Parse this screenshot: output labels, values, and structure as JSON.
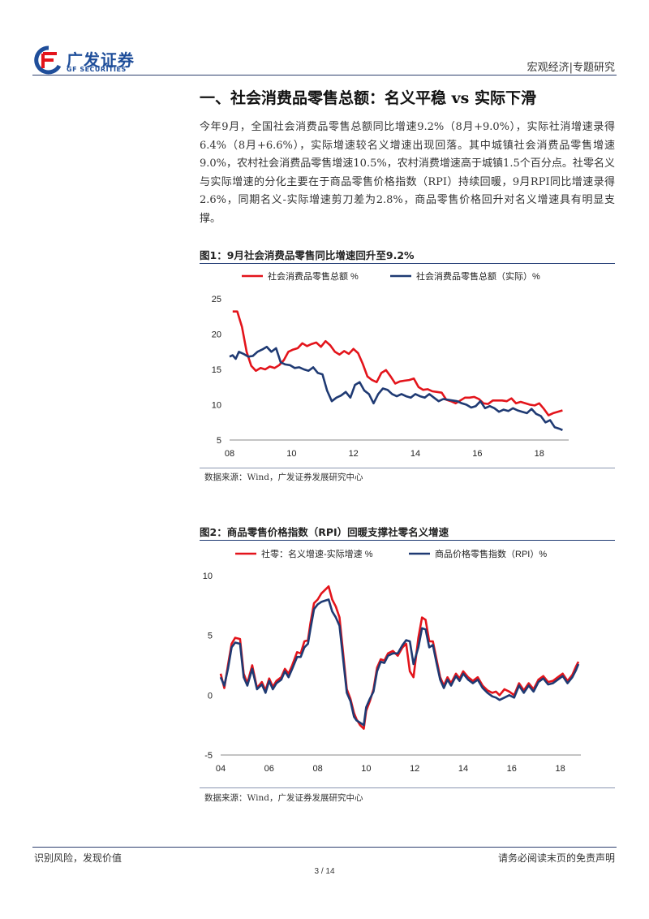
{
  "header": {
    "logo_cn": "广发证券",
    "logo_en": "GF SECURITIES",
    "right_text": "宏观经济|专题研究"
  },
  "section": {
    "title": "一、社会消费品零售总额：名义平稳 vs 实际下滑",
    "paragraph": "今年9月，全国社会消费品零售总额同比增速9.2%（8月+9.0%），实际社消增速录得6.4%（8月+6.6%），实际增速较名义增速出现回落。其中城镇社会消费品零售增速9.0%，农村社会消费品零售增速10.5%，农村消费增速高于城镇1.5个百分点。社零名义与实际增速的分化主要在于商品零售价格指数（RPI）持续回暖，9月RPI同比增速录得2.6%，同期名义-实际增速剪刀差为2.8%，商品零售价格回升对名义增速具有明显支撑。"
  },
  "figures": [
    {
      "title": "图1：9月社会消费品零售同比增速回升至9.2%",
      "source": "数据来源：Wind，广发证券发展研究中心"
    },
    {
      "title": "图2：商品零售价格指数（RPI）回暖支撑社零名义增速",
      "source": "数据来源：Wind，广发证券发展研究中心"
    }
  ],
  "colors": {
    "red": "#e3141b",
    "blue": "#1f3a73",
    "brand": "#1f4e9a"
  },
  "chart_data": [
    {
      "type": "line",
      "title": "",
      "xlabel": "",
      "ylabel": "",
      "xlim": [
        2008,
        2018.95
      ],
      "ylim": [
        5,
        25
      ],
      "yticks": [
        "5",
        "10",
        "15",
        "20",
        "25"
      ],
      "xticks": [
        "08",
        "10",
        "12",
        "14",
        "16",
        "18"
      ],
      "legend_position": "top",
      "series": [
        {
          "name": "社会消费品零售总额 %",
          "color": "#e3141b",
          "x": [
            2008.1,
            2008.25,
            2008.4,
            2008.55,
            2008.7,
            2008.85,
            2009.0,
            2009.15,
            2009.3,
            2009.45,
            2009.6,
            2009.75,
            2009.9,
            2010.05,
            2010.2,
            2010.35,
            2010.5,
            2010.65,
            2010.8,
            2010.95,
            2011.1,
            2011.25,
            2011.4,
            2011.55,
            2011.7,
            2011.85,
            2012.0,
            2012.15,
            2012.3,
            2012.45,
            2012.6,
            2012.75,
            2012.9,
            2013.05,
            2013.2,
            2013.35,
            2013.5,
            2013.65,
            2013.8,
            2013.95,
            2014.1,
            2014.25,
            2014.4,
            2014.55,
            2014.7,
            2014.85,
            2015.0,
            2015.15,
            2015.3,
            2015.45,
            2015.6,
            2015.75,
            2015.9,
            2016.05,
            2016.2,
            2016.35,
            2016.5,
            2016.65,
            2016.8,
            2016.95,
            2017.1,
            2017.25,
            2017.4,
            2017.55,
            2017.7,
            2017.85,
            2018.0,
            2018.15,
            2018.3,
            2018.45,
            2018.6,
            2018.75
          ],
          "values": [
            23.2,
            23.2,
            21,
            17.5,
            15.5,
            14.8,
            15.2,
            15.0,
            15.4,
            15.2,
            15.6,
            16.3,
            17.5,
            17.8,
            18.0,
            18.7,
            18.3,
            18.6,
            18.8,
            18.2,
            19.0,
            18.4,
            17.5,
            17.1,
            17.6,
            17.2,
            17.9,
            17.3,
            15.8,
            14.0,
            13.5,
            13.2,
            14.5,
            14.9,
            14.0,
            13.0,
            13.3,
            13.4,
            13.5,
            13.7,
            12.5,
            12.1,
            12.2,
            11.9,
            11.8,
            11.7,
            10.7,
            10.5,
            10.2,
            10.6,
            11.0,
            11.0,
            11.1,
            10.8,
            10.2,
            10.1,
            10.6,
            10.6,
            10.6,
            10.5,
            10.9,
            10.2,
            10.4,
            10.2,
            10.0,
            9.9,
            10.2,
            9.4,
            8.5,
            8.8,
            9.0,
            9.2
          ]
        },
        {
          "name": "社会消费品零售总额（实际）%",
          "color": "#1f3a73",
          "x": [
            2008.0,
            2008.1,
            2008.2,
            2008.3,
            2008.45,
            2008.6,
            2008.75,
            2008.9,
            2009.05,
            2009.2,
            2009.35,
            2009.5,
            2009.65,
            2009.8,
            2009.95,
            2010.1,
            2010.25,
            2010.4,
            2010.55,
            2010.7,
            2010.85,
            2011.0,
            2011.15,
            2011.3,
            2011.45,
            2011.6,
            2011.75,
            2011.9,
            2012.05,
            2012.2,
            2012.35,
            2012.5,
            2012.65,
            2012.8,
            2012.95,
            2013.1,
            2013.25,
            2013.4,
            2013.55,
            2013.7,
            2013.85,
            2014.0,
            2014.15,
            2014.3,
            2014.45,
            2014.6,
            2014.75,
            2014.9,
            2015.05,
            2015.2,
            2015.35,
            2015.5,
            2015.65,
            2015.8,
            2015.95,
            2016.1,
            2016.25,
            2016.4,
            2016.55,
            2016.7,
            2016.85,
            2017.0,
            2017.15,
            2017.3,
            2017.45,
            2017.6,
            2017.75,
            2017.9,
            2018.05,
            2018.2,
            2018.35,
            2018.5,
            2018.65,
            2018.75
          ],
          "values": [
            16.8,
            17.0,
            16.5,
            17.5,
            17.2,
            16.8,
            16.9,
            17.5,
            17.8,
            18.2,
            17.5,
            18.0,
            16.0,
            15.7,
            15.6,
            15.2,
            15.3,
            15.0,
            14.8,
            15.3,
            14.5,
            14.3,
            12.0,
            10.5,
            11.0,
            11.3,
            11.8,
            11.0,
            12.8,
            13.2,
            12.0,
            11.5,
            10.2,
            11.5,
            12.3,
            12.1,
            11.5,
            11.2,
            11.5,
            11.2,
            11.0,
            11.5,
            11.2,
            11.0,
            11.5,
            11.0,
            10.5,
            10.8,
            10.7,
            10.6,
            10.5,
            10.2,
            10.0,
            9.6,
            9.8,
            10.5,
            9.5,
            9.8,
            9.5,
            9.0,
            9.3,
            9.1,
            9.5,
            9.2,
            9.0,
            8.8,
            9.4,
            8.7,
            8.4,
            7.5,
            7.8,
            6.8,
            6.6,
            6.4
          ]
        }
      ]
    },
    {
      "type": "line",
      "title": "",
      "xlabel": "",
      "ylabel": "",
      "xlim": [
        2004,
        2018.85
      ],
      "ylim": [
        -5,
        10
      ],
      "yticks": [
        "-5",
        "0",
        "5",
        "10"
      ],
      "xticks": [
        "04",
        "06",
        "08",
        "10",
        "12",
        "14",
        "16",
        "18"
      ],
      "legend_position": "top",
      "series": [
        {
          "name": "社零：名义增速-实际增速 %",
          "color": "#e3141b",
          "x": [
            2004.0,
            2004.15,
            2004.3,
            2004.45,
            2004.6,
            2004.8,
            2004.95,
            2005.1,
            2005.3,
            2005.5,
            2005.7,
            2005.85,
            2006.0,
            2006.15,
            2006.3,
            2006.5,
            2006.65,
            2006.8,
            2006.95,
            2007.15,
            2007.3,
            2007.45,
            2007.6,
            2007.7,
            2007.85,
            2008.0,
            2008.15,
            2008.3,
            2008.45,
            2008.6,
            2008.75,
            2008.9,
            2009.05,
            2009.2,
            2009.35,
            2009.5,
            2009.6,
            2009.75,
            2009.9,
            2010.0,
            2010.15,
            2010.3,
            2010.45,
            2010.6,
            2010.75,
            2010.9,
            2011.1,
            2011.3,
            2011.5,
            2011.65,
            2011.8,
            2011.95,
            2012.15,
            2012.3,
            2012.45,
            2012.6,
            2012.75,
            2012.9,
            2013.05,
            2013.2,
            2013.35,
            2013.5,
            2013.7,
            2013.85,
            2014.0,
            2014.2,
            2014.4,
            2014.6,
            2014.8,
            2015.0,
            2015.2,
            2015.35,
            2015.5,
            2015.7,
            2015.9,
            2016.1,
            2016.3,
            2016.5,
            2016.7,
            2016.9,
            2017.1,
            2017.3,
            2017.5,
            2017.7,
            2017.9,
            2018.1,
            2018.3,
            2018.5,
            2018.65,
            2018.75
          ],
          "values": [
            1.8,
            0.6,
            2.5,
            4.3,
            4.8,
            4.7,
            1.8,
            1.0,
            2.5,
            0.6,
            1.1,
            0.4,
            1.4,
            0.7,
            1.2,
            1.5,
            2.2,
            1.8,
            2.5,
            3.6,
            3.5,
            4.5,
            4.6,
            6.0,
            7.7,
            8.0,
            8.5,
            8.8,
            9.1,
            8.0,
            7.4,
            6.5,
            3.5,
            0.5,
            -0.3,
            -1.5,
            -2.0,
            -2.5,
            -2.8,
            -1.3,
            -0.5,
            0.5,
            2.3,
            3.0,
            2.9,
            3.5,
            3.7,
            3.3,
            4.0,
            4.3,
            2.0,
            1.5,
            4.8,
            6.5,
            6.3,
            4.5,
            4.5,
            3.0,
            1.5,
            0.8,
            1.5,
            1.0,
            1.8,
            1.4,
            2.0,
            1.5,
            1.2,
            1.5,
            0.8,
            0.4,
            0.2,
            0.3,
            0.0,
            0.5,
            0.3,
            0.0,
            1.0,
            0.4,
            1.0,
            0.5,
            1.3,
            1.6,
            1.1,
            1.2,
            1.5,
            1.8,
            1.2,
            1.7,
            2.4,
            2.8
          ]
        },
        {
          "name": "商品价格零售指数（RPI）%",
          "color": "#1f3a73",
          "x": [
            2004.0,
            2004.15,
            2004.3,
            2004.45,
            2004.6,
            2004.8,
            2004.95,
            2005.1,
            2005.3,
            2005.5,
            2005.7,
            2005.85,
            2006.0,
            2006.15,
            2006.3,
            2006.5,
            2006.65,
            2006.8,
            2006.95,
            2007.15,
            2007.3,
            2007.45,
            2007.6,
            2007.7,
            2007.85,
            2008.0,
            2008.15,
            2008.3,
            2008.45,
            2008.6,
            2008.75,
            2008.9,
            2009.05,
            2009.2,
            2009.35,
            2009.5,
            2009.6,
            2009.75,
            2009.9,
            2010.0,
            2010.15,
            2010.3,
            2010.45,
            2010.6,
            2010.75,
            2010.9,
            2011.1,
            2011.3,
            2011.5,
            2011.65,
            2011.8,
            2011.95,
            2012.15,
            2012.3,
            2012.45,
            2012.6,
            2012.75,
            2012.9,
            2013.05,
            2013.2,
            2013.35,
            2013.5,
            2013.7,
            2013.85,
            2014.0,
            2014.2,
            2014.4,
            2014.6,
            2014.8,
            2015.0,
            2015.2,
            2015.35,
            2015.5,
            2015.7,
            2015.9,
            2016.1,
            2016.3,
            2016.5,
            2016.7,
            2016.9,
            2017.1,
            2017.3,
            2017.5,
            2017.7,
            2017.9,
            2018.1,
            2018.3,
            2018.5,
            2018.65,
            2018.75
          ],
          "values": [
            1.5,
            0.8,
            2.2,
            4.0,
            4.4,
            4.3,
            1.5,
            0.8,
            2.2,
            0.5,
            0.9,
            0.2,
            1.2,
            0.5,
            1.0,
            1.3,
            2.0,
            1.5,
            2.2,
            3.2,
            3.2,
            4.0,
            4.3,
            5.5,
            7.2,
            7.6,
            7.8,
            7.9,
            8.0,
            7.0,
            6.5,
            5.8,
            3.0,
            0.2,
            -0.5,
            -1.8,
            -2.1,
            -2.3,
            -2.5,
            -1.0,
            -0.3,
            0.3,
            2.0,
            2.8,
            2.7,
            3.3,
            3.5,
            3.5,
            4.2,
            4.6,
            4.5,
            2.6,
            4.0,
            5.6,
            5.5,
            4.0,
            4.2,
            2.7,
            1.3,
            0.6,
            1.3,
            0.8,
            1.6,
            1.2,
            1.8,
            1.3,
            1.0,
            1.3,
            0.6,
            0.2,
            -0.1,
            -0.2,
            -0.4,
            -0.2,
            0.0,
            -0.2,
            0.8,
            0.2,
            0.8,
            0.3,
            1.1,
            1.4,
            0.9,
            1.0,
            1.3,
            1.6,
            1.0,
            1.5,
            2.1,
            2.6
          ]
        }
      ]
    }
  ],
  "footer": {
    "left": "识别风险，发现价值",
    "right": "请务必阅读末页的免责声明",
    "page": "3 / 14"
  }
}
